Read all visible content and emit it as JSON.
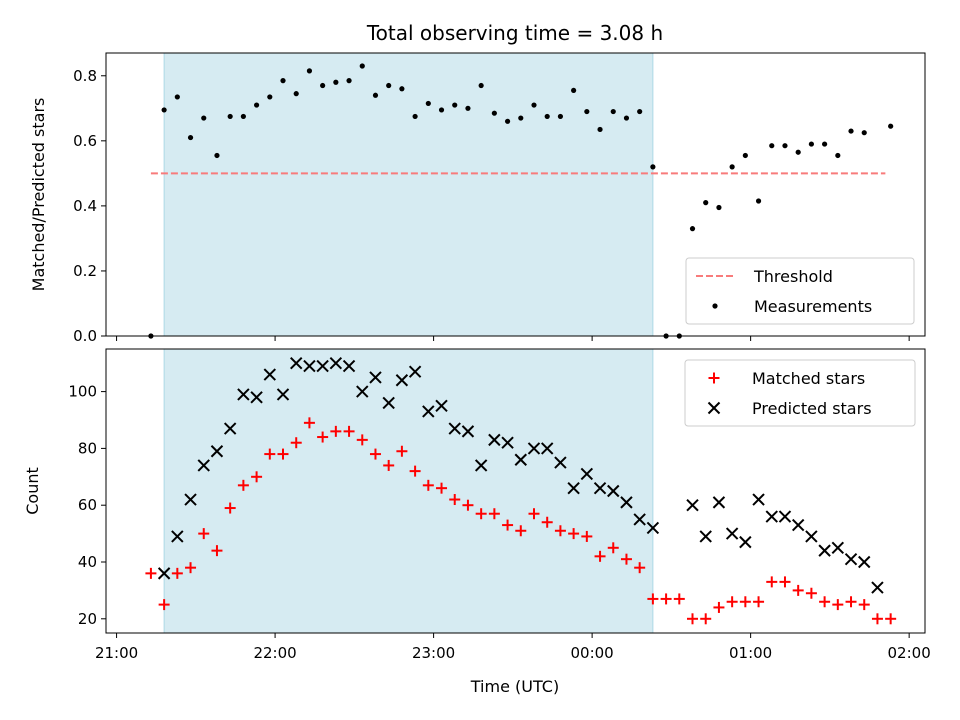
{
  "chart_data": {
    "type": "scatter",
    "title": "Total observing time = 3.08 h",
    "xlabel": "Time (UTC)",
    "x_axis": {
      "range_minutes_from_2100": [
        -4,
        306
      ],
      "ticks": [
        {
          "t": 0,
          "label": "21:00"
        },
        {
          "t": 60,
          "label": "22:00"
        },
        {
          "t": 120,
          "label": "23:00"
        },
        {
          "t": 180,
          "label": "00:00"
        },
        {
          "t": 240,
          "label": "01:00"
        },
        {
          "t": 300,
          "label": "02:00"
        }
      ]
    },
    "observing_window_minutes_from_2100": [
      18,
      203
    ],
    "threshold": {
      "value": 0.5,
      "x_range_minutes_from_2100": [
        13,
        291
      ]
    },
    "top": {
      "ylabel": "Matched/Predicted stars",
      "ylim": [
        0,
        0.87
      ],
      "yticks": [
        0.0,
        0.2,
        0.4,
        0.6,
        0.8
      ],
      "ytick_labels": [
        "0.0",
        "0.2",
        "0.4",
        "0.6",
        "0.8"
      ],
      "legend_position": "lower-right",
      "series": [
        {
          "name": "Threshold",
          "kind": "dashed-line",
          "color": "#f87b7b"
        },
        {
          "name": "Measurements",
          "kind": "points",
          "color": "#000000",
          "x": [
            13,
            18,
            23,
            28,
            33,
            38,
            43,
            48,
            53,
            58,
            63,
            68,
            73,
            78,
            83,
            88,
            93,
            98,
            103,
            108,
            113,
            118,
            123,
            128,
            133,
            138,
            143,
            148,
            153,
            158,
            163,
            168,
            173,
            178,
            183,
            188,
            193,
            198,
            203,
            208,
            213,
            218,
            223,
            228,
            233,
            238,
            243,
            248,
            253,
            258,
            263,
            268,
            273,
            278,
            283,
            293
          ],
          "y": [
            0.0,
            0.695,
            0.735,
            0.61,
            0.67,
            0.555,
            0.675,
            0.675,
            0.71,
            0.735,
            0.785,
            0.745,
            0.815,
            0.77,
            0.78,
            0.785,
            0.83,
            0.74,
            0.77,
            0.76,
            0.675,
            0.715,
            0.695,
            0.71,
            0.7,
            0.77,
            0.685,
            0.66,
            0.67,
            0.71,
            0.675,
            0.675,
            0.755,
            0.69,
            0.635,
            0.69,
            0.67,
            0.69,
            0.52,
            0.0,
            0.0,
            0.33,
            0.41,
            0.395,
            0.52,
            0.555,
            0.415,
            0.585,
            0.585,
            0.565,
            0.59,
            0.59,
            0.555,
            0.63,
            0.625,
            0.645
          ]
        }
      ]
    },
    "bottom": {
      "ylabel": "Count",
      "ylim": [
        15,
        115
      ],
      "yticks": [
        20,
        40,
        60,
        80,
        100
      ],
      "ytick_labels": [
        "20",
        "40",
        "60",
        "80",
        "100"
      ],
      "legend_position": "upper-right",
      "series": [
        {
          "name": "Matched stars",
          "marker": "+",
          "color": "#ff0000",
          "x": [
            13,
            18,
            23,
            28,
            33,
            38,
            43,
            48,
            53,
            58,
            63,
            68,
            73,
            78,
            83,
            88,
            93,
            98,
            103,
            108,
            113,
            118,
            123,
            128,
            133,
            138,
            143,
            148,
            153,
            158,
            163,
            168,
            173,
            178,
            183,
            188,
            193,
            198,
            203,
            208,
            213,
            218,
            223,
            228,
            233,
            238,
            243,
            248,
            253,
            258,
            263,
            268,
            273,
            278,
            283,
            288,
            293
          ],
          "y": [
            36,
            25,
            36,
            38,
            50,
            44,
            59,
            67,
            70,
            78,
            78,
            82,
            89,
            84,
            86,
            86,
            83,
            78,
            74,
            79,
            72,
            67,
            66,
            62,
            60,
            57,
            57,
            53,
            51,
            57,
            54,
            51,
            50,
            49,
            42,
            45,
            41,
            38,
            27,
            27,
            27,
            20,
            20,
            24,
            26,
            26,
            26,
            33,
            33,
            30,
            29,
            26,
            25,
            26,
            25,
            20,
            20
          ]
        },
        {
          "name": "Predicted stars",
          "marker": "x",
          "color": "#000000",
          "x": [
            18,
            23,
            28,
            33,
            38,
            43,
            48,
            53,
            58,
            63,
            68,
            73,
            78,
            83,
            88,
            93,
            98,
            103,
            108,
            113,
            118,
            123,
            128,
            133,
            138,
            143,
            148,
            153,
            158,
            163,
            168,
            173,
            178,
            183,
            188,
            193,
            198,
            203,
            218,
            223,
            228,
            233,
            238,
            243,
            248,
            253,
            258,
            263,
            268,
            273,
            278,
            283,
            288
          ],
          "y": [
            36,
            49,
            62,
            74,
            79,
            87,
            99,
            98,
            106,
            99,
            110,
            109,
            109,
            110,
            109,
            100,
            105,
            96,
            104,
            107,
            93,
            95,
            87,
            86,
            74,
            83,
            82,
            76,
            80,
            80,
            75,
            66,
            71,
            66,
            65,
            61,
            55,
            52,
            60,
            49,
            61,
            50,
            47,
            62,
            56,
            56,
            53,
            49,
            44,
            45,
            41,
            40,
            31
          ]
        }
      ]
    }
  }
}
